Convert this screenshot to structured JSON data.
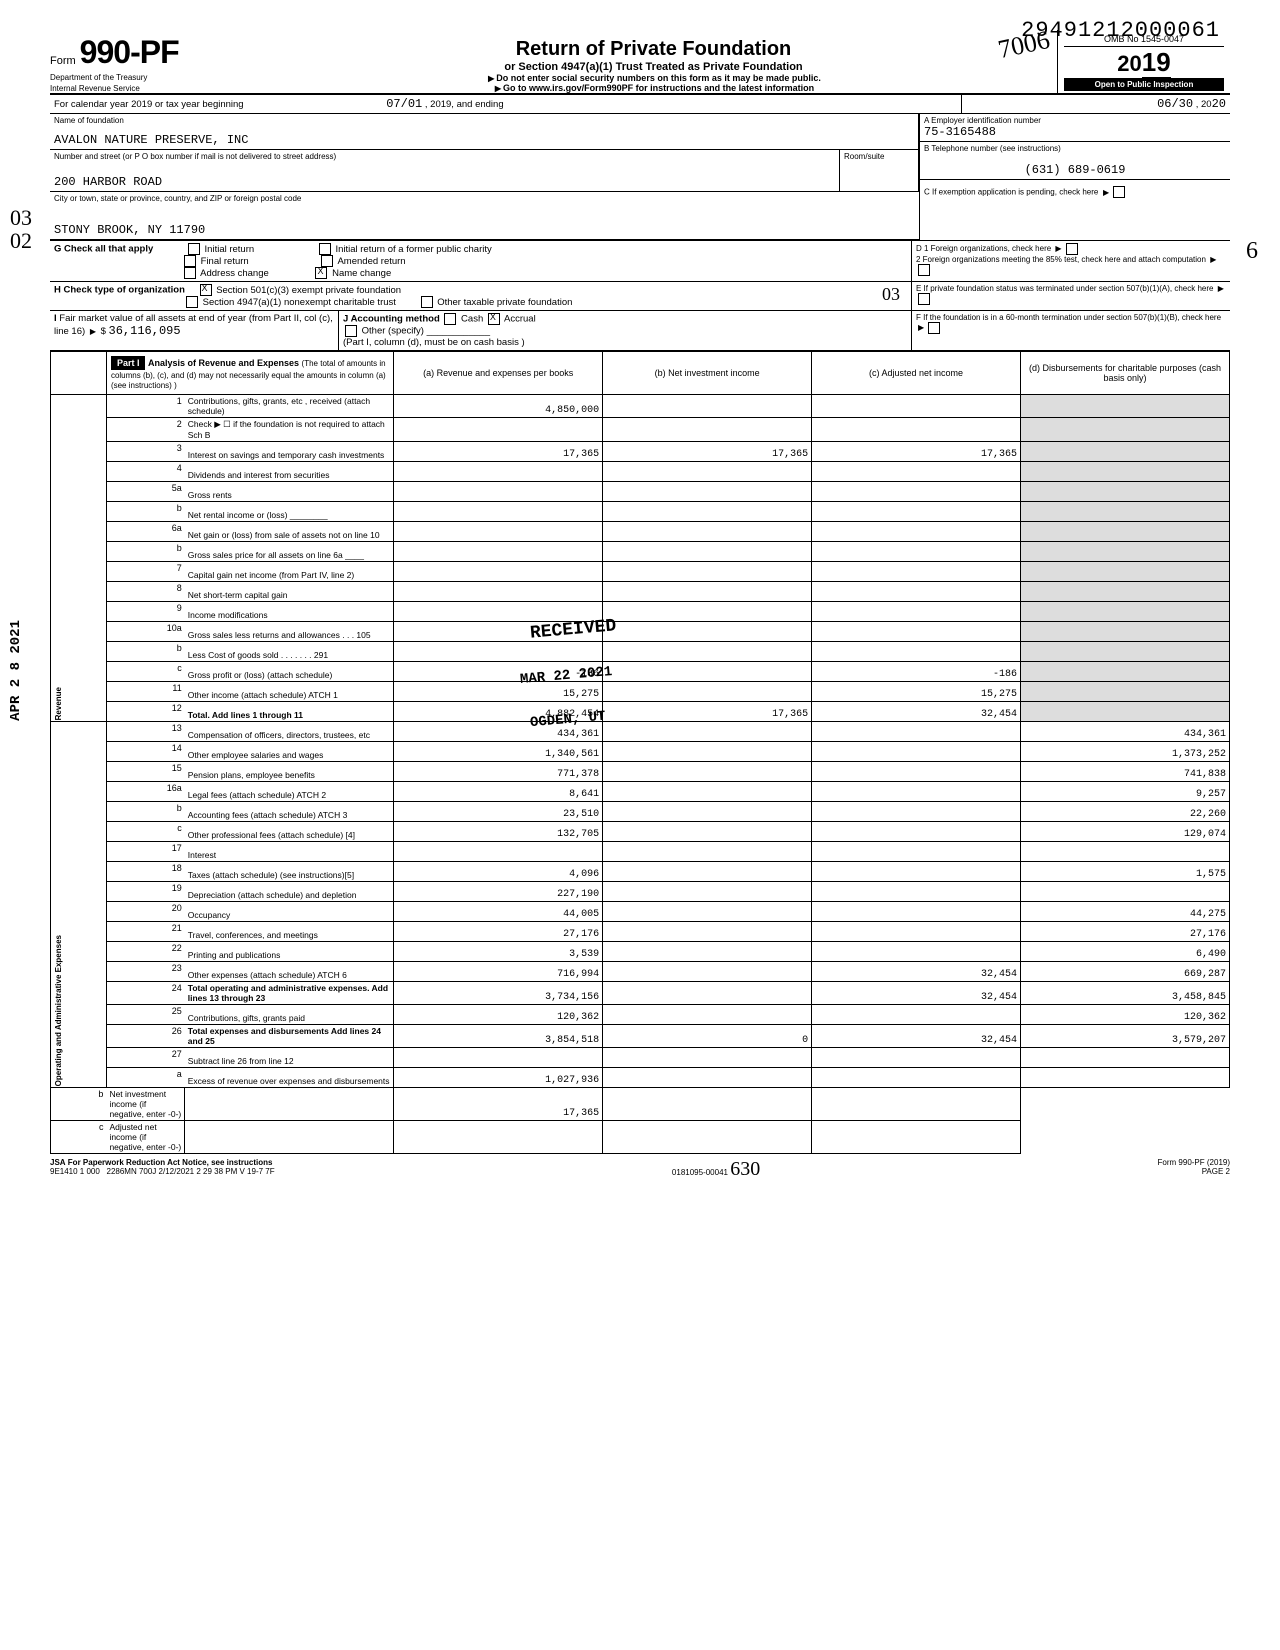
{
  "dln": "29491212000061",
  "form": {
    "prefix": "Form",
    "number": "990-PF",
    "dept": "Department of the Treasury",
    "irs": "Internal Revenue Service"
  },
  "title": {
    "main": "Return of Private Foundation",
    "sub": "or Section 4947(a)(1) Trust Treated as Private Foundation",
    "warn": "Do not enter social security numbers on this form as it may be made public.",
    "goto": "Go to www.irs.gov/Form990PF for instructions and the latest information"
  },
  "omb": "OMB No 1545-0047",
  "year": "2019",
  "open": "Open to Public Inspection",
  "signature": "7006",
  "period": {
    "label": "For calendar year 2019 or tax year beginning",
    "start": "07/01",
    "mid": ", 2019, and ending",
    "end": "06/30",
    "endyear": "2020"
  },
  "foundation": {
    "label": "Name of foundation",
    "name": "AVALON NATURE PRESERVE, INC"
  },
  "ein": {
    "label": "A  Employer identification number",
    "value": "75-3165488"
  },
  "address": {
    "label": "Number and street (or P O box number if mail is not delivered to street address)",
    "street": "200 HARBOR ROAD",
    "room_label": "Room/suite"
  },
  "phone": {
    "label": "B  Telephone number (see instructions)",
    "value": "(631) 689-0619"
  },
  "city": {
    "label": "City or town, state or province, country, and ZIP or foreign postal code",
    "value": "STONY BROOK, NY 11790"
  },
  "c_label": "C  If exemption application is pending, check here",
  "d_label": "D  1 Foreign organizations, check here",
  "d2_label": "2 Foreign organizations meeting the 85% test, check here and attach computation",
  "e_label": "E  If private foundation status was terminated under section 507(b)(1)(A), check here",
  "f_label": "F  If the foundation is in a 60-month termination under section 507(b)(1)(B), check here",
  "g": {
    "label": "G Check all that apply",
    "opts": [
      "Initial return",
      "Final return",
      "Address change",
      "Initial return of a former public charity",
      "Amended return",
      "Name change"
    ]
  },
  "h": {
    "label": "H Check type of organization",
    "opts": [
      "Section 501(c)(3) exempt private foundation",
      "Section 4947(a)(1) nonexempt charitable trust",
      "Other taxable private foundation"
    ]
  },
  "i": {
    "label": "I  Fair market value of all assets at end of year (from Part II, col (c), line 16)",
    "value": "36,116,095"
  },
  "j": {
    "label": "J Accounting method",
    "opts": [
      "Cash",
      "Accrual",
      "Other (specify)"
    ]
  },
  "cash_basis": "(Part I, column (d), must be on cash basis )",
  "margin1": "03",
  "margin2": "02",
  "margin_date": "APR 2 8 2021",
  "stamp_received": "RECEIVED",
  "stamp_date": "MAR 22 2021",
  "stamp_ogden": "OGDEN, UT",
  "part1": {
    "header": "Part I",
    "title": "Analysis of Revenue and Expenses",
    "note": "(The total of amounts in columns (b), (c), and (d) may not necessarily equal the amounts in column (a) (see instructions) )",
    "col_a": "(a) Revenue and expenses per books",
    "col_b": "(b) Net investment income",
    "col_c": "(c) Adjusted net income",
    "col_d": "(d) Disbursements for charitable purposes (cash basis only)",
    "side_revenue": "Revenue",
    "side_opex": "Operating and Administrative Expenses",
    "rows": [
      {
        "n": "1",
        "d": "Contributions, gifts, grants, etc , received (attach schedule)",
        "a": "4,850,000",
        "b": "",
        "c": "",
        "dd": ""
      },
      {
        "n": "2",
        "d": "Check ▶ ☐ if the foundation is not required to attach Sch B",
        "a": "",
        "b": "",
        "c": "",
        "dd": ""
      },
      {
        "n": "3",
        "d": "Interest on savings and temporary cash investments",
        "a": "17,365",
        "b": "17,365",
        "c": "17,365",
        "dd": ""
      },
      {
        "n": "4",
        "d": "Dividends and interest from securities",
        "a": "",
        "b": "",
        "c": "",
        "dd": ""
      },
      {
        "n": "5a",
        "d": "Gross rents",
        "a": "",
        "b": "",
        "c": "",
        "dd": ""
      },
      {
        "n": "b",
        "d": "Net rental income or (loss) ________",
        "a": "",
        "b": "",
        "c": "",
        "dd": ""
      },
      {
        "n": "6a",
        "d": "Net gain or (loss) from sale of assets not on line 10",
        "a": "",
        "b": "",
        "c": "",
        "dd": ""
      },
      {
        "n": "b",
        "d": "Gross sales price for all assets on line 6a ____",
        "a": "",
        "b": "",
        "c": "",
        "dd": ""
      },
      {
        "n": "7",
        "d": "Capital gain net income (from Part IV, line 2)",
        "a": "",
        "b": "",
        "c": "",
        "dd": ""
      },
      {
        "n": "8",
        "d": "Net short-term capital gain",
        "a": "",
        "b": "",
        "c": "",
        "dd": ""
      },
      {
        "n": "9",
        "d": "Income modifications",
        "a": "",
        "b": "",
        "c": "",
        "dd": ""
      },
      {
        "n": "10a",
        "d": "Gross sales less returns and allowances . . . 105",
        "a": "",
        "b": "",
        "c": "",
        "dd": ""
      },
      {
        "n": "b",
        "d": "Less Cost of goods sold . . . . . . . 291",
        "a": "",
        "b": "",
        "c": "",
        "dd": ""
      },
      {
        "n": "c",
        "d": "Gross profit or (loss) (attach schedule)",
        "a": "-186",
        "b": "",
        "c": "-186",
        "dd": ""
      },
      {
        "n": "11",
        "d": "Other income (attach schedule) ATCH 1",
        "a": "15,275",
        "b": "",
        "c": "15,275",
        "dd": ""
      },
      {
        "n": "12",
        "d": "Total. Add lines 1 through 11",
        "a": "4,882,454",
        "b": "17,365",
        "c": "32,454",
        "dd": ""
      },
      {
        "n": "13",
        "d": "Compensation of officers, directors, trustees, etc",
        "a": "434,361",
        "b": "",
        "c": "",
        "dd": "434,361"
      },
      {
        "n": "14",
        "d": "Other employee salaries and wages",
        "a": "1,340,561",
        "b": "",
        "c": "",
        "dd": "1,373,252"
      },
      {
        "n": "15",
        "d": "Pension plans, employee benefits",
        "a": "771,378",
        "b": "",
        "c": "",
        "dd": "741,838"
      },
      {
        "n": "16a",
        "d": "Legal fees (attach schedule) ATCH 2",
        "a": "8,641",
        "b": "",
        "c": "",
        "dd": "9,257"
      },
      {
        "n": "b",
        "d": "Accounting fees (attach schedule) ATCH 3",
        "a": "23,510",
        "b": "",
        "c": "",
        "dd": "22,260"
      },
      {
        "n": "c",
        "d": "Other professional fees (attach schedule) [4]",
        "a": "132,705",
        "b": "",
        "c": "",
        "dd": "129,074"
      },
      {
        "n": "17",
        "d": "Interest",
        "a": "",
        "b": "",
        "c": "",
        "dd": ""
      },
      {
        "n": "18",
        "d": "Taxes (attach schedule) (see instructions)[5]",
        "a": "4,096",
        "b": "",
        "c": "",
        "dd": "1,575"
      },
      {
        "n": "19",
        "d": "Depreciation (attach schedule) and depletion",
        "a": "227,190",
        "b": "",
        "c": "",
        "dd": ""
      },
      {
        "n": "20",
        "d": "Occupancy",
        "a": "44,005",
        "b": "",
        "c": "",
        "dd": "44,275"
      },
      {
        "n": "21",
        "d": "Travel, conferences, and meetings",
        "a": "27,176",
        "b": "",
        "c": "",
        "dd": "27,176"
      },
      {
        "n": "22",
        "d": "Printing and publications",
        "a": "3,539",
        "b": "",
        "c": "",
        "dd": "6,490"
      },
      {
        "n": "23",
        "d": "Other expenses (attach schedule) ATCH 6",
        "a": "716,994",
        "b": "",
        "c": "32,454",
        "dd": "669,287"
      },
      {
        "n": "24",
        "d": "Total operating and administrative expenses. Add lines 13 through 23",
        "a": "3,734,156",
        "b": "",
        "c": "32,454",
        "dd": "3,458,845"
      },
      {
        "n": "25",
        "d": "Contributions, gifts, grants paid",
        "a": "120,362",
        "b": "",
        "c": "",
        "dd": "120,362"
      },
      {
        "n": "26",
        "d": "Total expenses and disbursements Add lines 24 and 25",
        "a": "3,854,518",
        "b": "0",
        "c": "32,454",
        "dd": "3,579,207"
      },
      {
        "n": "27",
        "d": "Subtract line 26 from line 12",
        "a": "",
        "b": "",
        "c": "",
        "dd": ""
      },
      {
        "n": "a",
        "d": "Excess of revenue over expenses and disbursements",
        "a": "1,027,936",
        "b": "",
        "c": "",
        "dd": ""
      },
      {
        "n": "b",
        "d": "Net investment income (if negative, enter -0-)",
        "a": "",
        "b": "17,365",
        "c": "",
        "dd": ""
      },
      {
        "n": "c",
        "d": "Adjusted net income (if negative, enter -0-)",
        "a": "",
        "b": "",
        "c": "",
        "dd": ""
      }
    ]
  },
  "footer": {
    "jsa": "JSA",
    "pra": "For Paperwork Reduction Act Notice, see instructions",
    "form": "Form 990-PF (2019)",
    "line": "9E1410 1 000",
    "run": "2286MN 700J 2/12/2021 2 29 38 PM V 19-7 7F",
    "acct": "0181095-00041",
    "sig": "630",
    "page": "PAGE 2"
  },
  "hand_annot": "03",
  "hand_annot2": "6"
}
